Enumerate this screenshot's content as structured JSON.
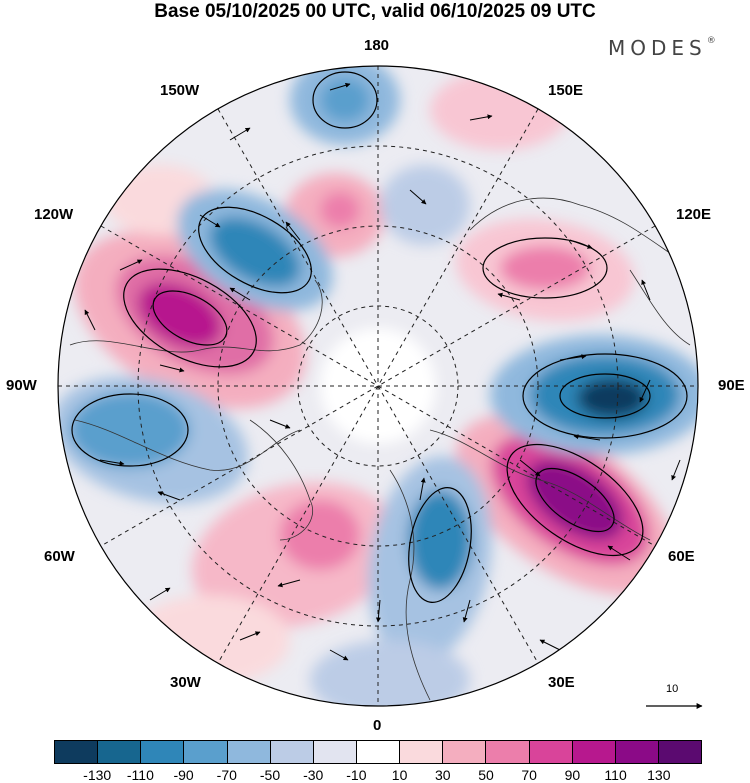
{
  "title": "Base 05/10/2025 00 UTC, valid 06/10/2025 09 UTC",
  "brand": "MODES",
  "brand_mark": "®",
  "longitude_labels": {
    "top": "180",
    "top_left": "150W",
    "top_right": "150E",
    "upper_left": "120W",
    "upper_right": "120E",
    "left": "90W",
    "right": "90E",
    "lower_left": "60W",
    "lower_right": "60E",
    "bottom_left": "30W",
    "bottom_right": "30E",
    "bottom": "0"
  },
  "reference_vector": {
    "value": "10"
  },
  "colorbar": {
    "colors": [
      "#0e3b5e",
      "#17668f",
      "#2f86b8",
      "#5a9fcd",
      "#8fb8dd",
      "#bccce6",
      "#e2e4f0",
      "#ffffff",
      "#fadadd",
      "#f4aebf",
      "#ec7eab",
      "#d9449a",
      "#b7188e",
      "#8b0a87",
      "#5b0a70"
    ],
    "ticks": [
      "-130",
      "-110",
      "-90",
      "-70",
      "-50",
      "-30",
      "-10",
      "10",
      "30",
      "50",
      "70",
      "90",
      "110",
      "130"
    ]
  }
}
